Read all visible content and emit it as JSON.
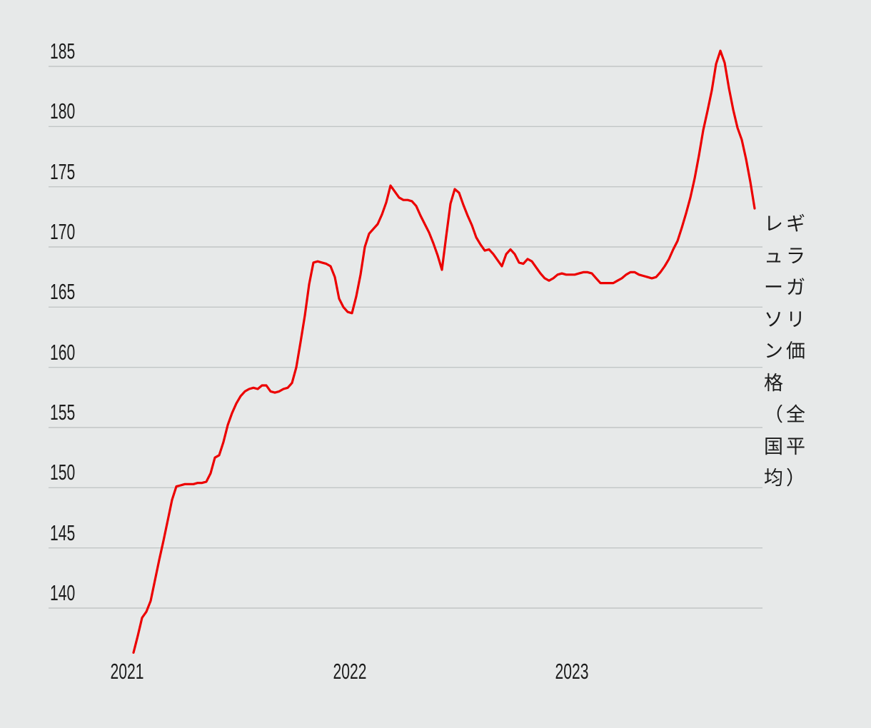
{
  "colors": {
    "background": "#e7e9e9",
    "gridline": "#c2c6c6",
    "text": "#1c1c1c",
    "line": "#ec0000"
  },
  "annotation": {
    "series_label": "レギュラーガソリン価格（全国平均）",
    "series_label_lines": [
      "レギ",
      "ュラ",
      "ーガ",
      "ソリ",
      "ン価",
      "格",
      "（全",
      "国平",
      "均）"
    ]
  },
  "chart_data": {
    "type": "line",
    "title": "",
    "ylabel": "レギュラーガソリン価格（全国平均）",
    "xlabel": "",
    "legend_position": "right",
    "grid": true,
    "y_ticks": [
      140,
      145,
      150,
      155,
      160,
      165,
      170,
      175,
      180,
      185
    ],
    "x_ticks": [
      2021,
      2022,
      2023
    ],
    "x_tick_labels": [
      "2021",
      "2022",
      "2023"
    ],
    "ylim": [
      135.5,
      187
    ],
    "xlim_years": [
      2020.65,
      2023.86
    ],
    "line_color": "#ec0000",
    "x_start_year": 2021.029,
    "x_step_years": 0.019262,
    "values": [
      136.3,
      137.7,
      139.2,
      139.7,
      140.6,
      142.3,
      144.0,
      145.6,
      147.3,
      149.0,
      150.1,
      150.2,
      150.3,
      150.3,
      150.3,
      150.4,
      150.4,
      150.5,
      151.2,
      152.5,
      152.7,
      153.8,
      155.2,
      156.2,
      157.0,
      157.6,
      158.0,
      158.2,
      158.3,
      158.2,
      158.5,
      158.5,
      158.0,
      157.9,
      158.0,
      158.2,
      158.3,
      158.7,
      160.0,
      162.1,
      164.3,
      166.9,
      168.7,
      168.8,
      168.7,
      168.6,
      168.4,
      167.5,
      165.7,
      165.0,
      164.6,
      164.5,
      165.9,
      167.7,
      170.0,
      171.1,
      171.5,
      171.9,
      172.7,
      173.7,
      175.1,
      174.6,
      174.1,
      173.9,
      173.9,
      173.8,
      173.4,
      172.6,
      171.9,
      171.2,
      170.3,
      169.3,
      168.1,
      170.9,
      173.6,
      174.8,
      174.5,
      173.5,
      172.6,
      171.8,
      170.8,
      170.2,
      169.7,
      169.8,
      169.4,
      168.9,
      168.4,
      169.4,
      169.8,
      169.4,
      168.7,
      168.6,
      169.0,
      168.8,
      168.3,
      167.8,
      167.4,
      167.2,
      167.4,
      167.7,
      167.8,
      167.7,
      167.7,
      167.7,
      167.8,
      167.9,
      167.9,
      167.8,
      167.4,
      167.0,
      167.0,
      167.0,
      167.0,
      167.2,
      167.4,
      167.7,
      167.9,
      167.9,
      167.7,
      167.6,
      167.5,
      167.4,
      167.5,
      167.9,
      168.4,
      169.0,
      169.8,
      170.5,
      171.6,
      172.8,
      174.1,
      175.7,
      177.6,
      179.7,
      181.3,
      183.0,
      185.2,
      186.3,
      185.3,
      183.2,
      181.4,
      179.9,
      178.9,
      177.3,
      175.4,
      173.2
    ]
  }
}
